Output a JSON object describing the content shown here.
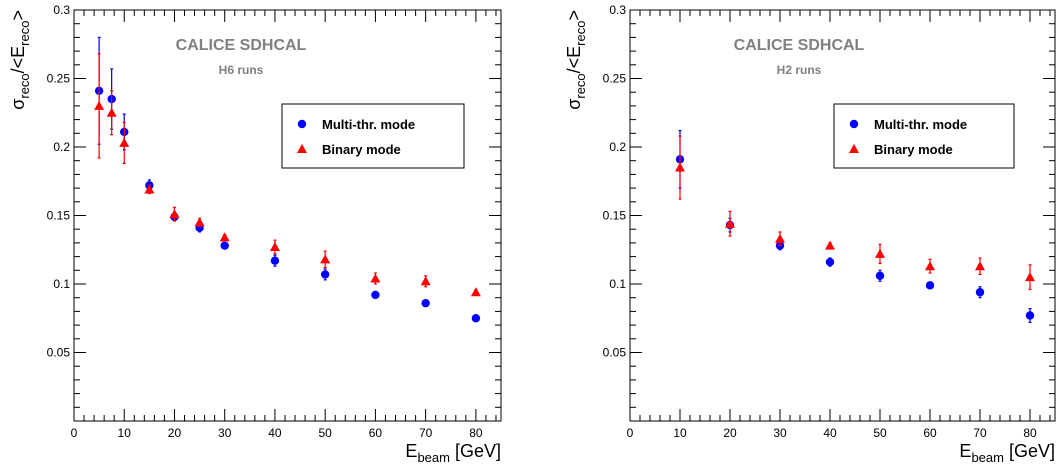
{
  "chart_data": [
    {
      "type": "scatter",
      "title": "",
      "watermark": "CALICE SDHCAL",
      "subtitle": "H6 runs",
      "xlabel": {
        "main": "E",
        "sub": "beam",
        "unit": " [GeV]"
      },
      "ylabel": {
        "sigma": "σ",
        "sub1": "reco",
        "mid": "/<E",
        "sub2": "reco",
        "end": ">"
      },
      "xlim": [
        0,
        85
      ],
      "ylim": [
        0,
        0.3
      ],
      "xticks": [
        0,
        10,
        20,
        30,
        40,
        50,
        60,
        70,
        80
      ],
      "yticks": [
        0.05,
        0.1,
        0.15,
        0.2,
        0.25,
        0.3
      ],
      "ytick_labels": [
        "0.05",
        "0.1",
        "0.15",
        "0.2",
        "0.25",
        "0.3"
      ],
      "legend_position": "top-right",
      "series": [
        {
          "name": "Multi-thr. mode",
          "marker": "circle",
          "color": "#0000ff",
          "x": [
            5,
            7.5,
            10,
            15,
            20,
            25,
            30,
            40,
            50,
            60,
            70,
            80
          ],
          "y": [
            0.241,
            0.235,
            0.211,
            0.172,
            0.149,
            0.141,
            0.128,
            0.117,
            0.107,
            0.092,
            0.086,
            0.075
          ],
          "yerr": [
            0.039,
            0.022,
            0.013,
            0.004,
            0.003,
            0.003,
            0.002,
            0.004,
            0.004,
            0.002,
            0.002,
            0.002
          ]
        },
        {
          "name": "Binary mode",
          "marker": "triangle",
          "color": "#ff0000",
          "x": [
            5,
            7.5,
            10,
            15,
            20,
            25,
            30,
            40,
            50,
            60,
            70,
            80
          ],
          "y": [
            0.23,
            0.225,
            0.203,
            0.169,
            0.151,
            0.145,
            0.134,
            0.127,
            0.118,
            0.104,
            0.102,
            0.094
          ],
          "yerr": [
            0.038,
            0.016,
            0.015,
            0.003,
            0.005,
            0.003,
            0.002,
            0.005,
            0.006,
            0.004,
            0.004,
            0.002
          ]
        }
      ]
    },
    {
      "type": "scatter",
      "title": "",
      "watermark": "CALICE SDHCAL",
      "subtitle": "H2 runs",
      "xlabel": {
        "main": "E",
        "sub": "beam",
        "unit": " [GeV]"
      },
      "ylabel": {
        "sigma": "σ",
        "sub1": "reco",
        "mid": "/<E",
        "sub2": "reco",
        "end": ">"
      },
      "xlim": [
        0,
        85
      ],
      "ylim": [
        0,
        0.3
      ],
      "xticks": [
        0,
        10,
        20,
        30,
        40,
        50,
        60,
        70,
        80
      ],
      "yticks": [
        0.05,
        0.1,
        0.15,
        0.2,
        0.25,
        0.3
      ],
      "ytick_labels": [
        "0.05",
        "0.1",
        "0.15",
        "0.2",
        "0.25",
        "0.3"
      ],
      "legend_position": "top-right",
      "series": [
        {
          "name": "Multi-thr. mode",
          "marker": "circle",
          "color": "#0000ff",
          "x": [
            10,
            20,
            30,
            40,
            50,
            60,
            70,
            80
          ],
          "y": [
            0.191,
            0.143,
            0.128,
            0.116,
            0.106,
            0.099,
            0.094,
            0.077
          ],
          "yerr": [
            0.021,
            0.005,
            0.003,
            0.003,
            0.004,
            0.002,
            0.004,
            0.005
          ]
        },
        {
          "name": "Binary mode",
          "marker": "triangle",
          "color": "#ff0000",
          "x": [
            10,
            20,
            30,
            40,
            50,
            60,
            70,
            80
          ],
          "y": [
            0.185,
            0.144,
            0.133,
            0.128,
            0.122,
            0.113,
            0.113,
            0.105
          ],
          "yerr": [
            0.023,
            0.009,
            0.005,
            0.002,
            0.007,
            0.005,
            0.006,
            0.009
          ]
        }
      ]
    }
  ]
}
